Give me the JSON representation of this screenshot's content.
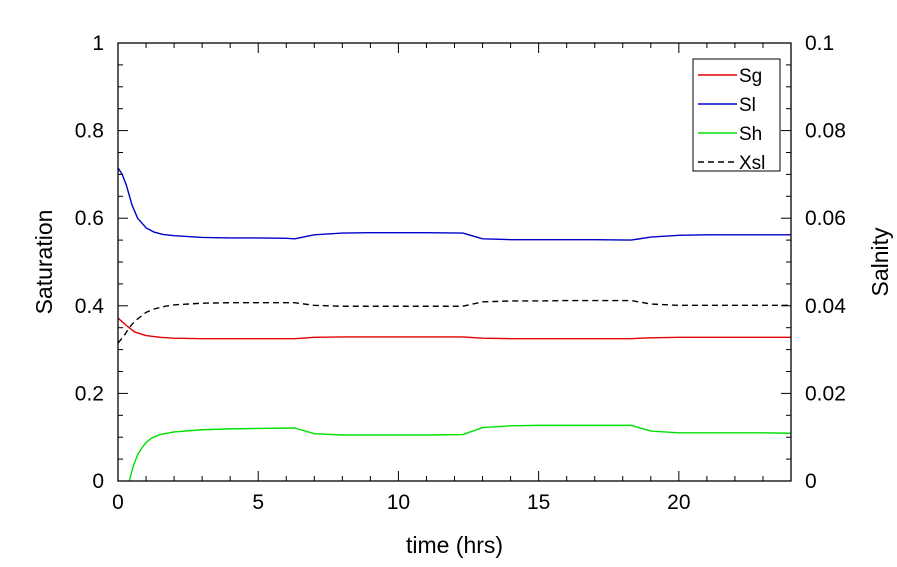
{
  "chart_data": {
    "type": "line",
    "title": "",
    "xlabel": "time (hrs)",
    "ylabel": "Saturation",
    "y2label": "Salnity",
    "xlim": [
      0,
      24
    ],
    "ylim": [
      0,
      1
    ],
    "y2lim": [
      0,
      0.1
    ],
    "x_ticks": [
      0,
      5,
      10,
      15,
      20
    ],
    "x_tick_labels": [
      "0",
      "5",
      "10",
      "15",
      "20"
    ],
    "y_ticks": [
      0,
      0.2,
      0.4,
      0.6,
      0.8,
      1
    ],
    "y_tick_labels": [
      "0",
      "0.2",
      "0.4",
      "0.6",
      "0.8",
      "1"
    ],
    "y2_ticks": [
      0,
      0.02,
      0.04,
      0.06,
      0.08,
      0.1
    ],
    "y2_tick_labels": [
      "0",
      "0.02",
      "0.04",
      "0.06",
      "0.08",
      "0.1"
    ],
    "grid": false,
    "legend_position": "top-right",
    "series": [
      {
        "name": "Sg",
        "axis": "left",
        "color": "#e00000",
        "dash": "solid",
        "x": [
          0,
          0.3,
          0.6,
          1.0,
          1.5,
          2.0,
          3.0,
          4.0,
          5.0,
          6.3,
          7.0,
          8.0,
          9.0,
          10.0,
          11.0,
          12.3,
          13.0,
          14.0,
          15.0,
          16.0,
          17.0,
          18.3,
          19.0,
          20.0,
          21.0,
          22.0,
          23.0,
          24.0
        ],
        "y": [
          0.372,
          0.355,
          0.34,
          0.332,
          0.328,
          0.326,
          0.325,
          0.325,
          0.325,
          0.325,
          0.328,
          0.329,
          0.329,
          0.329,
          0.329,
          0.329,
          0.326,
          0.325,
          0.325,
          0.325,
          0.325,
          0.325,
          0.327,
          0.328,
          0.328,
          0.328,
          0.328,
          0.328
        ]
      },
      {
        "name": "Sl",
        "axis": "left",
        "color": "#0000c8",
        "dash": "solid",
        "x": [
          0,
          0.15,
          0.3,
          0.5,
          0.7,
          1.0,
          1.3,
          1.6,
          2.0,
          3.0,
          4.0,
          5.0,
          6.0,
          6.3,
          7.0,
          8.0,
          9.0,
          10.0,
          11.0,
          12.3,
          13.0,
          14.0,
          15.0,
          16.0,
          17.0,
          18.3,
          19.0,
          20.0,
          21.0,
          22.0,
          23.0,
          24.0
        ],
        "y": [
          0.715,
          0.7,
          0.675,
          0.63,
          0.6,
          0.578,
          0.568,
          0.563,
          0.56,
          0.556,
          0.555,
          0.555,
          0.554,
          0.553,
          0.562,
          0.566,
          0.567,
          0.567,
          0.567,
          0.566,
          0.553,
          0.551,
          0.551,
          0.551,
          0.551,
          0.55,
          0.557,
          0.561,
          0.562,
          0.562,
          0.562,
          0.562
        ]
      },
      {
        "name": "Sh",
        "axis": "left",
        "color": "#00e000",
        "dash": "solid",
        "x": [
          0.4,
          0.55,
          0.7,
          0.85,
          1.0,
          1.2,
          1.5,
          2.0,
          3.0,
          4.0,
          5.0,
          6.3,
          7.0,
          8.0,
          9.0,
          10.0,
          11.0,
          12.3,
          13.0,
          14.0,
          15.0,
          16.0,
          17.0,
          18.3,
          19.0,
          20.0,
          21.0,
          22.0,
          23.0,
          24.0
        ],
        "y": [
          0.0,
          0.035,
          0.06,
          0.075,
          0.088,
          0.098,
          0.106,
          0.112,
          0.117,
          0.119,
          0.12,
          0.121,
          0.108,
          0.105,
          0.105,
          0.105,
          0.105,
          0.106,
          0.122,
          0.126,
          0.127,
          0.127,
          0.127,
          0.127,
          0.114,
          0.11,
          0.11,
          0.11,
          0.11,
          0.109
        ]
      },
      {
        "name": "Xsl",
        "axis": "right",
        "color": "#000000",
        "dash": "dashed",
        "x": [
          0,
          0.2,
          0.4,
          0.6,
          0.8,
          1.0,
          1.3,
          1.7,
          2.0,
          3.0,
          4.0,
          5.0,
          6.3,
          7.0,
          8.0,
          9.0,
          10.0,
          11.0,
          12.3,
          13.0,
          14.0,
          15.0,
          16.0,
          17.0,
          18.3,
          19.0,
          20.0,
          21.0,
          22.0,
          23.0,
          24.0
        ],
        "y": [
          0.0315,
          0.033,
          0.035,
          0.0365,
          0.0375,
          0.0385,
          0.0393,
          0.0399,
          0.0402,
          0.0406,
          0.0407,
          0.0407,
          0.0407,
          0.0401,
          0.0399,
          0.0399,
          0.0399,
          0.0399,
          0.0399,
          0.0409,
          0.0411,
          0.0411,
          0.0412,
          0.0412,
          0.0412,
          0.0404,
          0.0401,
          0.0401,
          0.0401,
          0.0401,
          0.0401
        ]
      }
    ]
  }
}
